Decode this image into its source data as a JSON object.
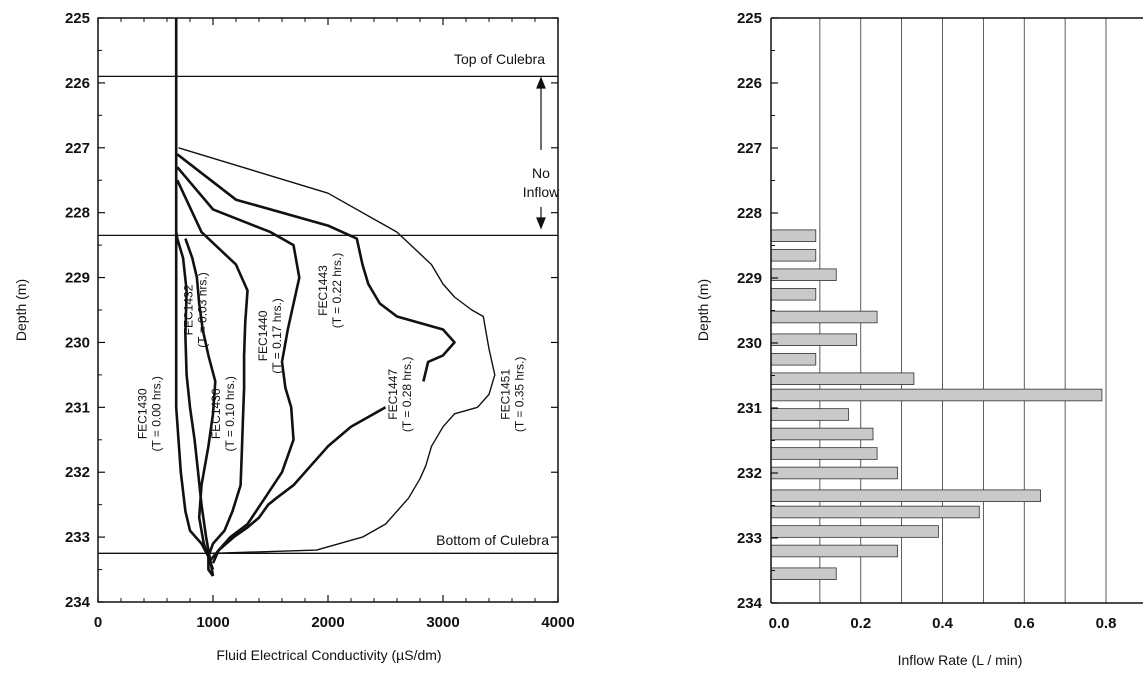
{
  "chart_data": [
    {
      "type": "line",
      "xlabel": "Fluid Electrical Conductivity (µS/dm)",
      "ylabel": "Depth (m)",
      "xlim": [
        0,
        4000
      ],
      "ylim": [
        225,
        234
      ],
      "y_inverted": true,
      "xticks": [
        "0",
        "1000",
        "2000",
        "3000",
        "4000"
      ],
      "yticks": [
        "225",
        "226",
        "227",
        "228",
        "229",
        "230",
        "231",
        "232",
        "233",
        "234"
      ],
      "grid": false,
      "reference_lines": [
        {
          "depth": 225.9,
          "label": "Top of Culebra"
        },
        {
          "depth": 228.35,
          "label": ""
        },
        {
          "depth": 233.25,
          "label": "Bottom of Culebra"
        }
      ],
      "annotations": [
        {
          "text": "No",
          "text2": "Inflow",
          "from_depth": 225.9,
          "to_depth": 228.35
        }
      ],
      "series": [
        {
          "name": "FEC1430",
          "label2": "(T = 0.00 hrs.)",
          "x": [
            680,
            680,
            680,
            680,
            680,
            680,
            680,
            680,
            700,
            720,
            740,
            760,
            800,
            900,
            960,
            960,
            1000
          ],
          "y": [
            225,
            226,
            227,
            228,
            228.4,
            229,
            230,
            231,
            231.5,
            232,
            232.3,
            232.6,
            232.9,
            233.1,
            233.3,
            233.5,
            233.6
          ]
        },
        {
          "name": "FEC1432",
          "label2": "(T = 0.03 hrs.)",
          "x": [
            680,
            690,
            740,
            770,
            760,
            770,
            800,
            840,
            870,
            900,
            940,
            970,
            1000
          ],
          "y": [
            228.3,
            228.4,
            228.7,
            229.2,
            229.9,
            230.5,
            231,
            231.5,
            232,
            232.5,
            233,
            233.3,
            233.6
          ]
        },
        {
          "name": "FEC1436",
          "label2": "(T = 0.10 hrs.)",
          "x": [
            760,
            820,
            860,
            880,
            910,
            960,
            1020,
            1000,
            960,
            900,
            880,
            920,
            1000
          ],
          "y": [
            228.4,
            228.7,
            229,
            229.4,
            229.8,
            230.2,
            230.6,
            231.1,
            231.6,
            232.2,
            232.7,
            233.1,
            233.5
          ]
        },
        {
          "name": "FEC1440",
          "label2": "(T = 0.17 hrs.)",
          "x": [
            690,
            900,
            1200,
            1300,
            1280,
            1270,
            1270,
            1260,
            1250,
            1240,
            1170,
            1100,
            1000,
            960
          ],
          "y": [
            227.5,
            228.3,
            228.8,
            229.2,
            229.7,
            230.2,
            230.7,
            231.2,
            231.7,
            232.2,
            232.6,
            232.9,
            233.1,
            233.3
          ]
        },
        {
          "name": "FEC1443",
          "label2": "(T = 0.22 hrs.)",
          "x": [
            690,
            1000,
            1500,
            1700,
            1750,
            1650,
            1600,
            1630,
            1680,
            1700,
            1600,
            1450,
            1300,
            1150,
            1050,
            1000
          ],
          "y": [
            227.3,
            227.95,
            228.3,
            228.5,
            229.0,
            229.8,
            230.3,
            230.7,
            231.0,
            231.5,
            232.0,
            232.4,
            232.8,
            233.0,
            233.2,
            233.4
          ]
        },
        {
          "name": "FEC1447",
          "label2": "(T = 0.28 hrs.)",
          "x": [
            690,
            1200,
            2000,
            2250,
            2300,
            2350,
            2450,
            2600,
            2800,
            3000,
            3100,
            3000,
            2870,
            2830
          ],
          "y": [
            227.1,
            227.8,
            228.2,
            228.4,
            228.8,
            229.1,
            229.4,
            229.6,
            229.7,
            229.8,
            230.0,
            230.2,
            230.3,
            230.6
          ]
        },
        {
          "name": "FEC1447b",
          "label2": "",
          "x": [
            2500,
            2200,
            2000,
            1850,
            1700,
            1550,
            1480,
            1400,
            1300,
            1180,
            1050,
            980
          ],
          "y": [
            231.0,
            231.3,
            231.6,
            231.9,
            232.2,
            232.4,
            232.5,
            232.7,
            232.85,
            233.0,
            233.2,
            233.35
          ]
        },
        {
          "name": "FEC1451",
          "label2": "(T = 0.35 hrs.)",
          "x": [
            700,
            2000,
            2600,
            2900,
            3000,
            3100,
            3250,
            3350,
            3380,
            3400,
            3450,
            3400,
            3300,
            3100,
            3000,
            2900,
            2850,
            2800,
            2700,
            2600,
            2500,
            2400,
            2300,
            2100,
            2000,
            1900,
            1000
          ],
          "y": [
            227.0,
            227.7,
            228.3,
            228.8,
            229.1,
            229.3,
            229.5,
            229.6,
            229.9,
            230.1,
            230.5,
            230.8,
            231.0,
            231.1,
            231.3,
            231.6,
            231.9,
            232.1,
            232.4,
            232.6,
            232.8,
            232.9,
            233.0,
            233.1,
            233.15,
            233.2,
            233.25
          ]
        }
      ],
      "labels": {
        "top_of_culebra": "Top of Culebra",
        "bottom_of_culebra": "Bottom of Culebra",
        "no": "No",
        "inflow": "Inflow"
      }
    },
    {
      "type": "bar",
      "orientation": "horizontal",
      "xlabel": "Inflow Rate (L / min)",
      "ylabel": "Depth (m)",
      "xlim": [
        0,
        0.9
      ],
      "ylim": [
        225,
        234
      ],
      "y_inverted": true,
      "xticks": [
        "0.0",
        "0.2",
        "0.4",
        "0.6",
        "0.8"
      ],
      "yticks": [
        "225",
        "226",
        "227",
        "228",
        "229",
        "230",
        "231",
        "232",
        "233",
        "234"
      ],
      "grid": "vertical",
      "depths": [
        228.35,
        228.65,
        228.95,
        229.25,
        229.6,
        229.95,
        230.25,
        230.55,
        230.8,
        231.1,
        231.4,
        231.7,
        232.0,
        232.35,
        232.6,
        232.9,
        233.2,
        233.55
      ],
      "values": [
        0.09,
        0.09,
        0.14,
        0.09,
        0.24,
        0.19,
        0.09,
        0.33,
        0.79,
        0.17,
        0.23,
        0.24,
        0.29,
        0.64,
        0.49,
        0.39,
        0.29,
        0.14
      ]
    }
  ]
}
